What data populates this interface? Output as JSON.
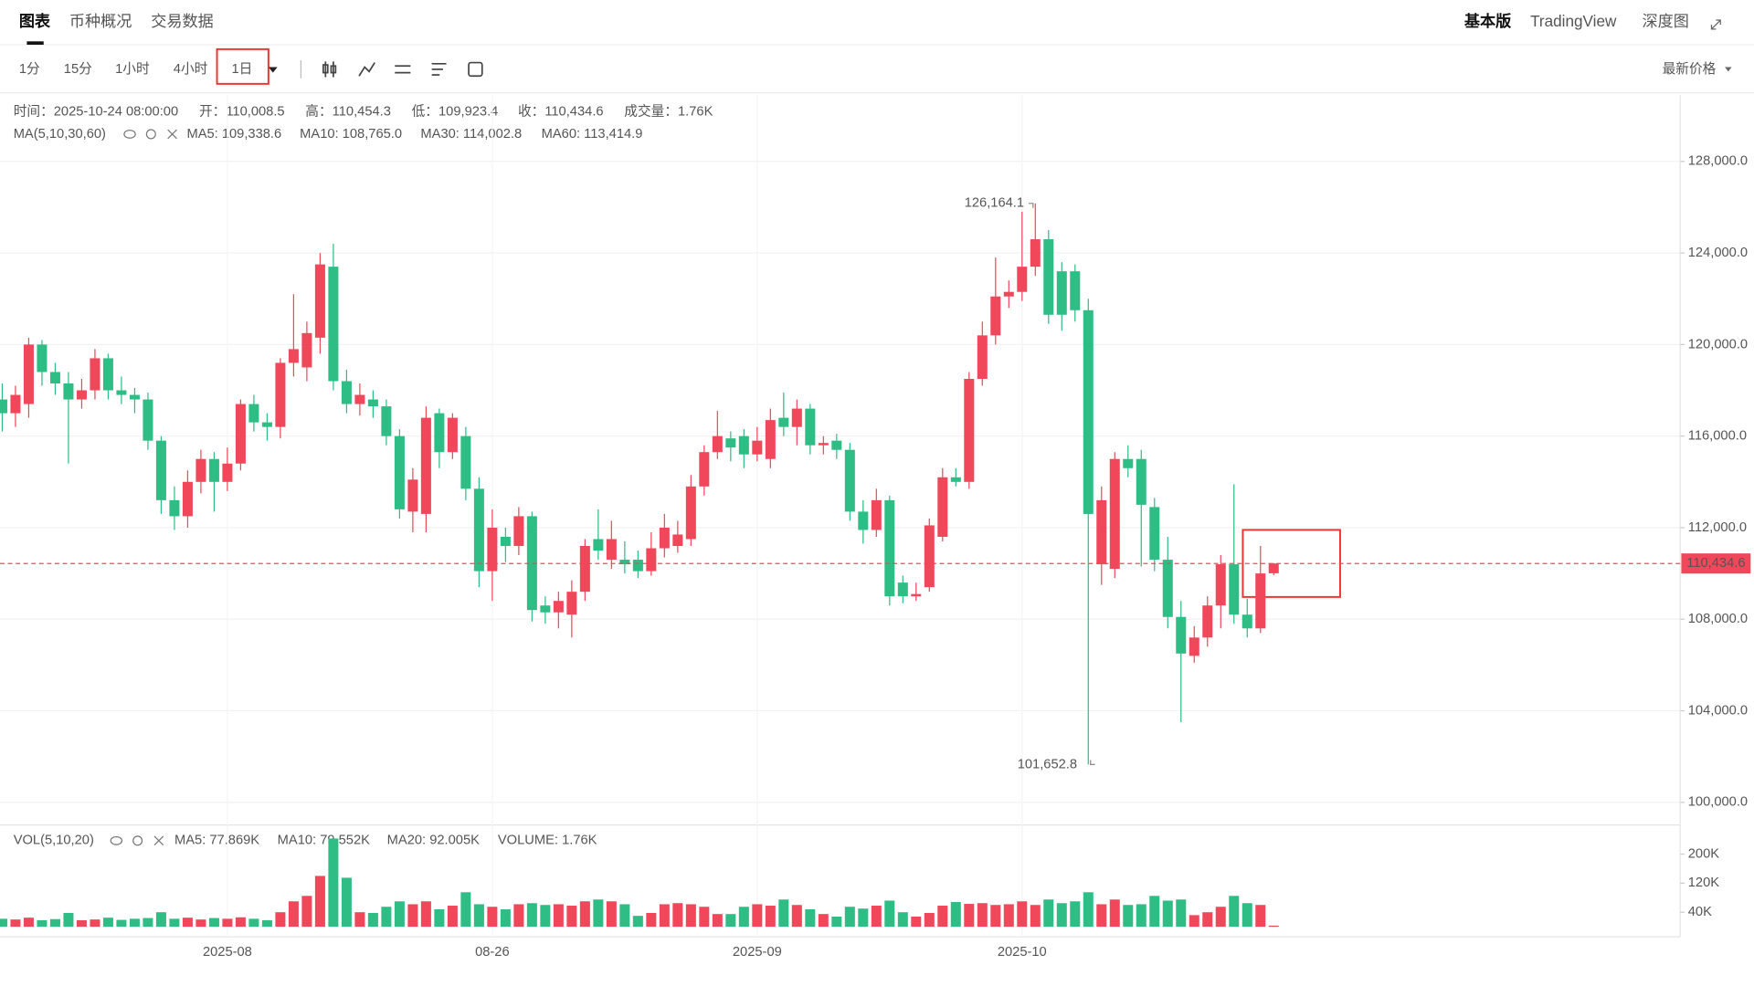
{
  "header": {
    "tabs": [
      "图表",
      "币种概况",
      "交易数据"
    ],
    "right_tabs": [
      "基本版",
      "TradingView",
      "深度图"
    ]
  },
  "toolbar": {
    "intervals": [
      "1分",
      "15分",
      "1小时",
      "4小时",
      "1日"
    ],
    "selected": 4,
    "price_type": "最新价格"
  },
  "chart_data": {
    "type": "candlestick",
    "info": [
      "时间：2025-10-24 08:00:00",
      "开：110,008.5",
      "高：110,454.3",
      "低：109,923.4",
      "收：110,434.6",
      "成交量：1.76K"
    ],
    "ma_indicator": {
      "label": "MA(5,10,30,60)",
      "items": [
        {
          "text": "MA5: 109,338.6",
          "color": "#f0a020"
        },
        {
          "text": "MA10: 108,765.0",
          "color": "#9b59b6"
        },
        {
          "text": "MA30: 114,002.8",
          "color": "#1e7fd6"
        },
        {
          "text": "MA60: 113,414.9",
          "color": "#c2185b"
        }
      ]
    },
    "vol_indicator": {
      "label": "VOL(5,10,20)",
      "items": [
        {
          "text": "MA5: 77.869K",
          "color": "#f0a020"
        },
        {
          "text": "MA10: 79.552K",
          "color": "#9b59b6"
        },
        {
          "text": "MA20: 92.005K",
          "color": "#1e7fd6"
        },
        {
          "text": "VOLUME: 1.76K",
          "color": "#f0475b"
        }
      ]
    },
    "categories": [
      null,
      null,
      null,
      null,
      null,
      null,
      null,
      null,
      null,
      null,
      null,
      null,
      null,
      null,
      null,
      null,
      null,
      "2025-08",
      null,
      null,
      null,
      null,
      null,
      null,
      null,
      null,
      null,
      null,
      null,
      null,
      null,
      null,
      null,
      null,
      null,
      null,
      null,
      "08-26",
      null,
      null,
      null,
      null,
      null,
      null,
      null,
      null,
      null,
      null,
      null,
      null,
      null,
      null,
      null,
      null,
      null,
      null,
      null,
      "2025-09",
      null,
      null,
      null,
      null,
      null,
      null,
      null,
      null,
      null,
      null,
      null,
      null,
      null,
      null,
      null,
      null,
      null,
      null,
      null,
      "2025-10",
      null,
      null,
      null,
      null,
      null,
      null,
      null,
      null,
      null,
      null,
      null,
      null,
      null,
      null,
      null,
      null,
      null,
      null,
      null
    ],
    "open": [
      117600,
      117000,
      117400,
      120000,
      118800,
      118300,
      117600,
      118000,
      119400,
      118000,
      117800,
      117600,
      115800,
      113200,
      112500,
      114000,
      115000,
      114000,
      114800,
      117400,
      116600,
      116400,
      119200,
      119000,
      120300,
      123400,
      118400,
      117400,
      117600,
      117300,
      116000,
      112700,
      112600,
      117000,
      115300,
      116000,
      113700,
      110100,
      111600,
      111200,
      112500,
      108600,
      108300,
      108200,
      109200,
      111500,
      110600,
      110600,
      110600,
      110100,
      111100,
      111200,
      111500,
      113800,
      115300,
      115900,
      116000,
      115200,
      115000,
      116800,
      116400,
      117200,
      115600,
      115800,
      115400,
      112700,
      111900,
      113200,
      109600,
      109000,
      109400,
      111600,
      114200,
      114000,
      118500,
      120400,
      122100,
      122300,
      123400,
      124600,
      123200,
      123200,
      121500,
      110400,
      110200,
      115000,
      115000,
      112900,
      110600,
      108100,
      106400,
      107200,
      108600,
      110400,
      108200,
      107600,
      110008.5
    ],
    "high": [
      118300,
      118200,
      120300,
      120200,
      119200,
      118800,
      118500,
      119800,
      119600,
      118600,
      118100,
      117900,
      116000,
      113800,
      114500,
      115400,
      115300,
      115500,
      117600,
      117800,
      117000,
      119400,
      122200,
      121000,
      124000,
      124400,
      118900,
      118300,
      118000,
      117600,
      116300,
      114600,
      117300,
      117200,
      117000,
      116400,
      114200,
      112800,
      112000,
      112900,
      112700,
      109000,
      109200,
      109700,
      111500,
      112800,
      112300,
      111400,
      111000,
      111800,
      112600,
      112300,
      114300,
      115600,
      117100,
      116200,
      116300,
      116400,
      117200,
      117900,
      117600,
      117400,
      116000,
      116100,
      115700,
      113200,
      113700,
      113400,
      109900,
      109600,
      112400,
      114600,
      114600,
      118800,
      121000,
      123800,
      122800,
      125800,
      126164.1,
      125000,
      123600,
      123500,
      122000,
      113800,
      115300,
      115600,
      115400,
      113300,
      111600,
      108800,
      107700,
      109000,
      110800,
      113900,
      108900,
      111200,
      110454.3
    ],
    "low": [
      116200,
      116400,
      116800,
      118200,
      117800,
      114800,
      117200,
      117600,
      117600,
      117400,
      117000,
      115400,
      112600,
      111900,
      112000,
      113500,
      112700,
      113600,
      114500,
      116200,
      115800,
      115900,
      118600,
      118400,
      119600,
      118000,
      117000,
      116900,
      116800,
      115600,
      112400,
      111800,
      111800,
      114600,
      115000,
      113200,
      109400,
      108800,
      110500,
      110800,
      107900,
      107800,
      107600,
      107200,
      108800,
      110600,
      110200,
      110000,
      109800,
      109900,
      110700,
      110900,
      111200,
      113400,
      115000,
      114900,
      114600,
      114900,
      114600,
      116000,
      115600,
      115200,
      115200,
      115000,
      112300,
      111300,
      111600,
      108600,
      108700,
      108800,
      109200,
      111400,
      113800,
      113700,
      118200,
      120000,
      121600,
      121900,
      123000,
      120900,
      120600,
      121000,
      101652.8,
      109500,
      109800,
      114200,
      110300,
      110100,
      107600,
      103500,
      106100,
      106800,
      107600,
      107800,
      107200,
      107400,
      109923.4
    ],
    "close": [
      117000,
      117800,
      120000,
      118800,
      118300,
      117600,
      118000,
      119400,
      118000,
      117800,
      117600,
      115800,
      113200,
      112500,
      114000,
      115000,
      114000,
      114800,
      117400,
      116600,
      116400,
      119200,
      119800,
      120500,
      123500,
      118400,
      117400,
      117800,
      117300,
      116000,
      112800,
      114100,
      116800,
      115300,
      116800,
      113700,
      110100,
      112000,
      111200,
      112500,
      108400,
      108300,
      108800,
      109200,
      111200,
      111000,
      111500,
      110400,
      110100,
      111100,
      112000,
      111700,
      113800,
      115300,
      116000,
      115500,
      115200,
      115800,
      116700,
      116400,
      117200,
      115600,
      115700,
      115400,
      112700,
      111900,
      113200,
      109000,
      109000,
      109100,
      112100,
      114200,
      114000,
      118500,
      120400,
      122100,
      122300,
      123400,
      124600,
      121300,
      121300,
      121500,
      112600,
      113200,
      115000,
      114600,
      113000,
      110600,
      108100,
      106500,
      107200,
      108600,
      110400,
      108200,
      107600,
      110000,
      110434.6
    ],
    "volume": [
      22000,
      20000,
      25000,
      18000,
      21000,
      38000,
      18000,
      20000,
      25000,
      19000,
      22000,
      24000,
      40000,
      22000,
      25000,
      20000,
      24000,
      22000,
      26000,
      22000,
      18000,
      40000,
      70000,
      85000,
      140000,
      243000,
      135000,
      40000,
      38000,
      55000,
      70000,
      62000,
      70000,
      48000,
      58000,
      95000,
      62000,
      55000,
      48000,
      62000,
      65000,
      60000,
      62000,
      58000,
      70000,
      75000,
      70000,
      62000,
      30000,
      38000,
      62000,
      65000,
      62000,
      55000,
      35000,
      35000,
      55000,
      62000,
      58000,
      75000,
      60000,
      48000,
      35000,
      28000,
      55000,
      50000,
      58000,
      72000,
      40000,
      28000,
      38000,
      58000,
      68000,
      63000,
      65000,
      60000,
      62000,
      70000,
      60000,
      75000,
      65000,
      70000,
      95000,
      62000,
      75000,
      60000,
      62000,
      85000,
      72000,
      75000,
      32000,
      40000,
      55000,
      85000,
      65000,
      60000,
      1760
    ],
    "up_color": "#f0475b",
    "down_color": "#2ebd85",
    "ylim": [
      99400,
      130900
    ],
    "yticks": [
      {
        "value": 100000,
        "label": "100,000.0"
      },
      {
        "value": 104000,
        "label": "104,000.0"
      },
      {
        "value": 108000,
        "label": "108,000.0"
      },
      {
        "value": 112000,
        "label": "112,000.0"
      },
      {
        "value": 116000,
        "label": "116,000.0"
      },
      {
        "value": 120000,
        "label": "120,000.0"
      },
      {
        "value": 124000,
        "label": "124,000.0"
      },
      {
        "value": 128000,
        "label": "128,000.0"
      }
    ],
    "volume_ylim": [
      0,
      274000
    ],
    "volume_ticks": [
      {
        "value": 40000,
        "label": "40K"
      },
      {
        "value": 120000,
        "label": "120K"
      },
      {
        "value": 200000,
        "label": "200K"
      }
    ],
    "last_price": {
      "value": 110434.6,
      "label": "110,434.6"
    },
    "max_annotation": {
      "value": 126164.1,
      "label": "126,164.1"
    },
    "min_annotation": {
      "value": 101652.8,
      "label": "101,652.8"
    },
    "grid": true
  }
}
